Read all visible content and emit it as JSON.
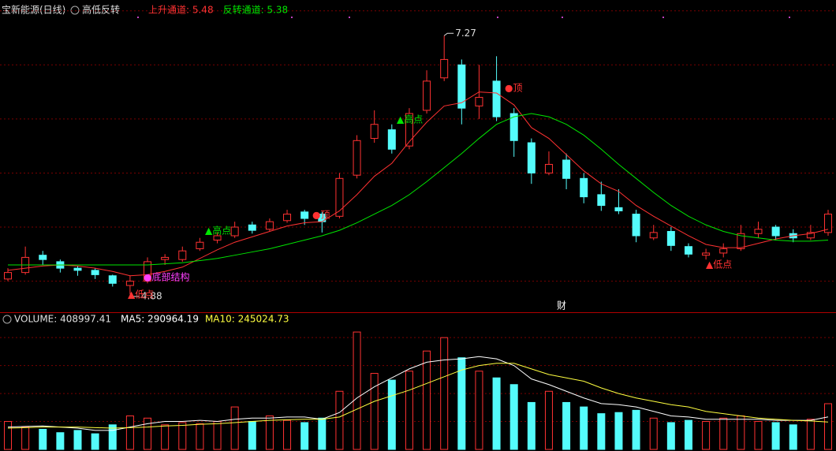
{
  "chart_data": {
    "type": "candlestick",
    "title": "宝新能源(日线)",
    "indicator": "高低反转",
    "open": [
      5.02,
      5.08,
      5.24,
      5.18,
      5.12,
      5.1,
      5.05,
      4.96,
      5.0,
      5.2,
      5.2,
      5.3,
      5.38,
      5.42,
      5.52,
      5.48,
      5.56,
      5.64,
      5.62,
      5.6,
      5.98,
      6.32,
      6.4,
      6.25,
      6.58,
      6.88,
      7.0,
      6.62,
      6.85,
      6.55,
      6.28,
      6.0,
      6.12,
      5.95,
      5.8,
      5.68,
      5.62,
      5.4,
      5.46,
      5.32,
      5.24,
      5.26,
      5.3,
      5.44,
      5.5,
      5.44,
      5.4,
      5.45
    ],
    "high": [
      5.12,
      5.32,
      5.28,
      5.2,
      5.14,
      5.12,
      5.06,
      5.05,
      5.22,
      5.25,
      5.32,
      5.4,
      5.45,
      5.55,
      5.55,
      5.58,
      5.66,
      5.66,
      5.64,
      6.0,
      6.35,
      6.58,
      6.45,
      6.6,
      6.95,
      7.27,
      7.05,
      7.0,
      7.08,
      6.6,
      6.32,
      6.2,
      6.18,
      6.0,
      5.92,
      5.85,
      5.66,
      5.52,
      5.5,
      5.35,
      5.3,
      5.35,
      5.52,
      5.55,
      5.52,
      5.48,
      5.52,
      5.66
    ],
    "low": [
      5.0,
      5.06,
      5.15,
      5.08,
      5.05,
      5.02,
      4.95,
      4.88,
      4.98,
      5.15,
      5.18,
      5.28,
      5.35,
      5.4,
      5.44,
      5.46,
      5.54,
      5.52,
      5.45,
      5.58,
      5.95,
      6.28,
      6.18,
      6.22,
      6.55,
      6.85,
      6.45,
      6.5,
      6.48,
      6.15,
      5.9,
      5.98,
      5.85,
      5.72,
      5.65,
      5.62,
      5.36,
      5.38,
      5.28,
      5.22,
      5.2,
      5.22,
      5.28,
      5.4,
      5.38,
      5.36,
      5.38,
      5.42
    ],
    "close": [
      5.08,
      5.22,
      5.2,
      5.12,
      5.1,
      5.06,
      4.98,
      5.0,
      5.18,
      5.22,
      5.28,
      5.36,
      5.42,
      5.5,
      5.47,
      5.55,
      5.62,
      5.58,
      5.55,
      5.95,
      6.3,
      6.45,
      6.22,
      6.55,
      6.85,
      7.05,
      6.6,
      6.7,
      6.52,
      6.3,
      6.0,
      6.08,
      5.95,
      5.78,
      5.7,
      5.65,
      5.42,
      5.45,
      5.33,
      5.25,
      5.26,
      5.3,
      5.44,
      5.48,
      5.42,
      5.4,
      5.45,
      5.62
    ],
    "up_color": "#ff3232",
    "down_color": "#54fcfc",
    "ylim": [
      4.72,
      7.6
    ],
    "yticks": [
      5.0,
      5.5,
      6.0,
      6.5,
      7.0,
      7.5
    ],
    "grid": true,
    "series": [
      {
        "name": "上升通道: 5.48",
        "color": "#ff3232",
        "values": [
          5.1,
          5.12,
          5.14,
          5.15,
          5.14,
          5.12,
          5.09,
          5.05,
          5.06,
          5.09,
          5.13,
          5.21,
          5.29,
          5.36,
          5.41,
          5.46,
          5.51,
          5.54,
          5.55,
          5.65,
          5.8,
          5.97,
          6.09,
          6.29,
          6.47,
          6.62,
          6.65,
          6.75,
          6.74,
          6.63,
          6.42,
          6.32,
          6.17,
          6.02,
          5.9,
          5.83,
          5.7,
          5.6,
          5.51,
          5.42,
          5.34,
          5.31,
          5.31,
          5.35,
          5.39,
          5.42,
          5.44,
          5.48
        ]
      },
      {
        "name": "反转通道: 5.38",
        "color": "#00e600",
        "values": [
          5.15,
          5.15,
          5.15,
          5.15,
          5.15,
          5.15,
          5.15,
          5.15,
          5.15,
          5.16,
          5.17,
          5.19,
          5.21,
          5.24,
          5.27,
          5.3,
          5.34,
          5.38,
          5.42,
          5.47,
          5.54,
          5.62,
          5.7,
          5.8,
          5.92,
          6.05,
          6.18,
          6.32,
          6.45,
          6.52,
          6.55,
          6.52,
          6.45,
          6.35,
          6.22,
          6.08,
          5.95,
          5.82,
          5.7,
          5.6,
          5.52,
          5.46,
          5.42,
          5.4,
          5.38,
          5.37,
          5.37,
          5.38
        ]
      }
    ],
    "annotations": [
      {
        "text": "▲低点",
        "color": "#ff3232"
      },
      {
        "text": "●底部结构",
        "color": "#ff40ff"
      },
      {
        "text": "▲高点",
        "color": "#00e600"
      },
      {
        "text": "●顶",
        "color": "#ff3232"
      },
      {
        "text": "▲高点",
        "color": "#00e600"
      },
      {
        "text": "●顶",
        "color": "#ff3232"
      },
      {
        "text": "▲低点",
        "color": "#ff3232"
      },
      {
        "text": "财",
        "color": "#ffffff"
      }
    ],
    "volume": {
      "label": "VOLUME: 408997.41",
      "values": [
        250000,
        200000,
        180000,
        150000,
        170000,
        140000,
        220000,
        300000,
        280000,
        220000,
        240000,
        230000,
        250000,
        380000,
        250000,
        300000,
        260000,
        240000,
        280000,
        520000,
        1050000,
        680000,
        620000,
        700000,
        880000,
        1000000,
        820000,
        700000,
        640000,
        580000,
        420000,
        520000,
        420000,
        380000,
        320000,
        330000,
        350000,
        280000,
        240000,
        260000,
        250000,
        280000,
        300000,
        250000,
        240000,
        220000,
        270000,
        408997.41
      ],
      "ylim": [
        0,
        1100000
      ],
      "yticks": [
        250000,
        500000,
        750000,
        1000000
      ],
      "series": [
        {
          "name": "MA5: 290964.19",
          "color": "#ffffff",
          "values": [
            200000,
            205000,
            210000,
            200000,
            190000,
            170000,
            170000,
            200000,
            230000,
            250000,
            250000,
            260000,
            250000,
            270000,
            280000,
            280000,
            290000,
            290000,
            270000,
            330000,
            460000,
            560000,
            640000,
            720000,
            780000,
            800000,
            810000,
            830000,
            810000,
            750000,
            630000,
            580000,
            520000,
            460000,
            410000,
            400000,
            380000,
            340000,
            300000,
            290000,
            270000,
            270000,
            270000,
            270000,
            260000,
            260000,
            260000,
            290964.19
          ]
        },
        {
          "name": "MA10: 245024.73",
          "color": "#ffff40",
          "values": [
            190000,
            195000,
            200000,
            200000,
            200000,
            195000,
            190000,
            195000,
            200000,
            210000,
            215000,
            225000,
            230000,
            240000,
            250000,
            260000,
            265000,
            270000,
            270000,
            290000,
            360000,
            430000,
            480000,
            530000,
            590000,
            650000,
            710000,
            750000,
            770000,
            770000,
            720000,
            670000,
            640000,
            610000,
            550000,
            500000,
            460000,
            430000,
            400000,
            380000,
            340000,
            320000,
            300000,
            280000,
            270000,
            260000,
            255000,
            245024.73
          ]
        }
      ]
    }
  }
}
